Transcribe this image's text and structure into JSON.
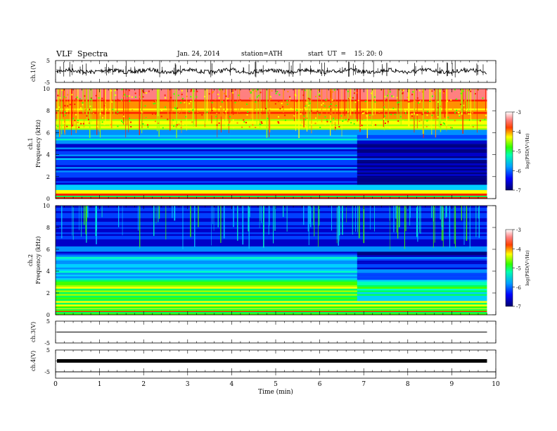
{
  "header": {
    "title": "VLF  Spectra",
    "date": "Jan. 24, 2014",
    "station": "station=ATH",
    "start": "start  UT  =    15: 20: 0"
  },
  "chart_data": [
    {
      "type": "line",
      "panel": "ch1-waveform",
      "ylabel": "ch.1(V)",
      "ylim": [
        -5,
        5
      ],
      "yticks": [
        "5",
        "-5"
      ],
      "xlim": [
        0,
        10
      ],
      "mean_value": 0.2
    },
    {
      "type": "heatmap",
      "panel": "ch1-spectrogram",
      "ylabel": "ch.1\nFrequency  (kHz)",
      "yticks": [
        "0",
        "2",
        "4",
        "6",
        "8",
        "10"
      ],
      "ylim": [
        0,
        10
      ],
      "xlim": [
        0,
        10
      ],
      "data_end_min": 9.8,
      "colorbar": {
        "label": "log(PSD(V²/Hz)",
        "ticks": [
          "-3",
          "-4",
          "-5",
          "-6",
          "-7"
        ],
        "range": [
          -7,
          -3
        ]
      }
    },
    {
      "type": "heatmap",
      "panel": "ch2-spectrogram",
      "ylabel": "ch.2\nFrequency  (kHz)",
      "yticks": [
        "0",
        "2",
        "4",
        "6",
        "8",
        "10"
      ],
      "ylim": [
        0,
        10
      ],
      "xlim": [
        0,
        10
      ],
      "data_end_min": 9.8,
      "colorbar": {
        "label": "log(PSD(V²/Hz)",
        "ticks": [
          "-3",
          "-4",
          "-5",
          "-6",
          "-7"
        ],
        "range": [
          -7,
          -3
        ]
      }
    },
    {
      "type": "line",
      "panel": "ch3-waveform",
      "ylabel": "ch.3(V)",
      "ylim": [
        -5,
        5
      ],
      "yticks": [
        "5",
        "-5"
      ],
      "xlim": [
        0,
        10
      ],
      "mean_value": 0.0
    },
    {
      "type": "line",
      "panel": "ch4-waveform",
      "ylabel": "ch.4(V)",
      "ylim": [
        -5,
        5
      ],
      "yticks": [
        "5",
        "-5"
      ],
      "xlim": [
        0,
        10
      ],
      "mean_value": 0.0
    }
  ],
  "xaxis": {
    "label": "Time  (min)",
    "ticks": [
      "0",
      "1",
      "2",
      "3",
      "4",
      "5",
      "6",
      "7",
      "8",
      "9",
      "10"
    ]
  },
  "colors": {
    "spectrum_low": "#00008b",
    "spectrum_mid": "#00ff80",
    "spectrum_high": "#ff0000"
  }
}
